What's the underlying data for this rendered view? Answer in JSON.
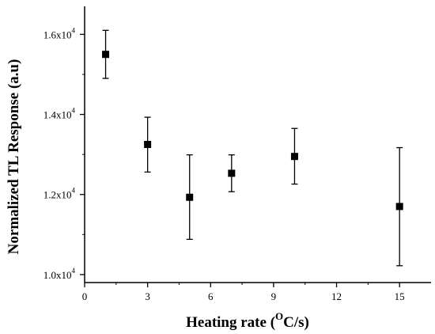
{
  "chart_data": {
    "type": "scatter",
    "title": "",
    "xlabel": "Heating rate",
    "xlabel_unit": "(",
    "xlabel_unit_sup": "O",
    "xlabel_unit_tail": "C/s)",
    "ylabel": "Normalized TL Response (a.u)",
    "xlim": [
      0,
      16.5
    ],
    "ylim": [
      9800,
      16700
    ],
    "x_ticks": [
      0,
      3,
      6,
      9,
      12,
      15
    ],
    "x_tick_labels": [
      "0",
      "3",
      "6",
      "9",
      "12",
      "15"
    ],
    "y_ticks": [
      10000,
      12000,
      14000,
      16000
    ],
    "y_tick_labels": [
      {
        "mantissa": "1.0x10",
        "exp": "4"
      },
      {
        "mantissa": "1.2x10",
        "exp": "4"
      },
      {
        "mantissa": "1.4x10",
        "exp": "4"
      },
      {
        "mantissa": "1.6x10",
        "exp": "4"
      }
    ],
    "grid": false,
    "marker": "square",
    "series": [
      {
        "x": [
          1,
          3,
          5,
          7,
          10,
          15
        ],
        "y": [
          15500,
          13250,
          11930,
          12530,
          12950,
          11700
        ],
        "y_err_low": [
          14900,
          12560,
          10880,
          12070,
          12260,
          10220
        ],
        "y_err_high": [
          16100,
          13930,
          12990,
          12990,
          13650,
          13170
        ]
      }
    ],
    "colors": {
      "marker": "#000000",
      "axis": "#000000"
    }
  }
}
